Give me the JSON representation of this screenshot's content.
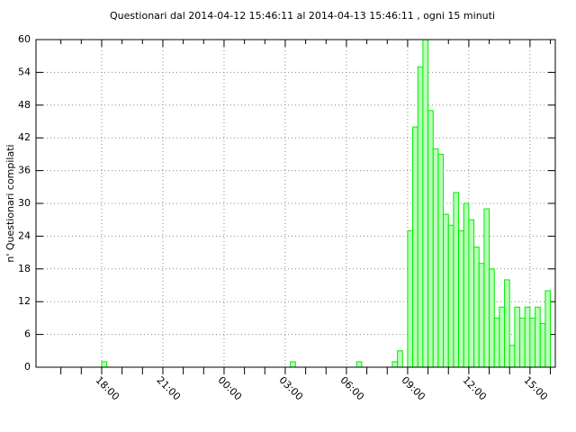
{
  "chart_data": {
    "type": "bar",
    "title": "Questionari dal 2014-04-12 15:46:11  al 2014-04-13 15:46:11 , ogni 15 minuti",
    "y_label": "n' Questionari compilati",
    "x": [
      18,
      27.25,
      30.5,
      32.25,
      32.5,
      33,
      33.25,
      33.5,
      33.75,
      34,
      34.25,
      34.5,
      34.75,
      35,
      35.25,
      35.5,
      35.75,
      36,
      36.25,
      36.5,
      36.75,
      37,
      37.25,
      37.5,
      37.75,
      38,
      38.25,
      38.5,
      38.75,
      39,
      39.25,
      39.5,
      39.75
    ],
    "values": [
      1,
      1,
      1,
      1,
      3,
      25,
      44,
      55,
      60,
      47,
      40,
      39,
      28,
      26,
      32,
      25,
      30,
      27,
      22,
      19,
      29,
      18,
      9,
      11,
      16,
      4,
      11,
      9,
      11,
      9,
      11,
      8,
      14
    ],
    "bar_width": 0.25,
    "color": "#00ee00",
    "fill": "#b8ffb8",
    "xlim": [
      14.78,
      40.24
    ],
    "xticks": [
      {
        "value": 18,
        "label": "18:00"
      },
      {
        "value": 21,
        "label": "21:00"
      },
      {
        "value": 24,
        "label": "00:00"
      },
      {
        "value": 27,
        "label": "03:00"
      },
      {
        "value": 30,
        "label": "06:00"
      },
      {
        "value": 33,
        "label": "09:00"
      },
      {
        "value": 36,
        "label": "12:00"
      },
      {
        "value": 39,
        "label": "15:00"
      }
    ],
    "xminorticks": [
      16,
      17,
      19,
      20,
      22,
      23,
      25,
      26,
      28,
      29,
      31,
      32,
      34,
      35,
      37,
      38,
      40
    ],
    "ylim": [
      0,
      60
    ],
    "yticks": [
      0,
      6,
      12,
      18,
      24,
      30,
      36,
      42,
      48,
      54,
      60
    ],
    "grid": true
  }
}
